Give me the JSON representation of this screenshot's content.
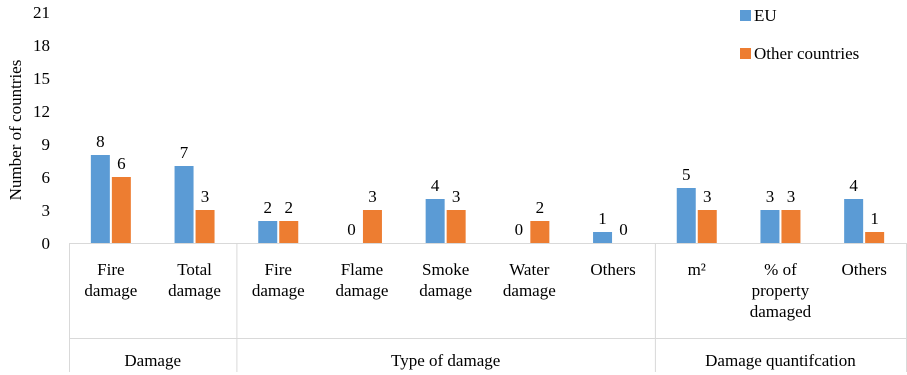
{
  "chart_data": {
    "type": "bar",
    "title": "",
    "ylabel": "Number of countries",
    "xlabel": "",
    "ylim": [
      0,
      21
    ],
    "yticks": [
      0,
      3,
      6,
      9,
      12,
      15,
      18,
      21
    ],
    "grid": false,
    "legend_position": "top-right",
    "categories": [
      [
        "Fire",
        "damage"
      ],
      [
        "Total",
        "damage"
      ],
      [
        "Fire",
        "damage"
      ],
      [
        "Flame",
        "damage"
      ],
      [
        "Smoke",
        "damage"
      ],
      [
        "Water",
        "damage"
      ],
      [
        "Others"
      ],
      [
        "m²"
      ],
      [
        "% of",
        "property",
        "damaged"
      ],
      [
        "Others"
      ]
    ],
    "groups": [
      {
        "label": "Damage",
        "categories": [
          0,
          1
        ]
      },
      {
        "label": "Type of damage",
        "categories": [
          2,
          3,
          4,
          5,
          6
        ]
      },
      {
        "label": "Damage quantifcation",
        "categories": [
          7,
          8,
          9
        ]
      }
    ],
    "series": [
      {
        "name": "EU",
        "color": "#5B9BD5",
        "values": [
          8,
          7,
          2,
          0,
          4,
          0,
          1,
          5,
          3,
          4
        ]
      },
      {
        "name": "Other countries",
        "color": "#ED7D31",
        "values": [
          6,
          3,
          2,
          3,
          3,
          2,
          0,
          3,
          3,
          1
        ]
      }
    ]
  }
}
